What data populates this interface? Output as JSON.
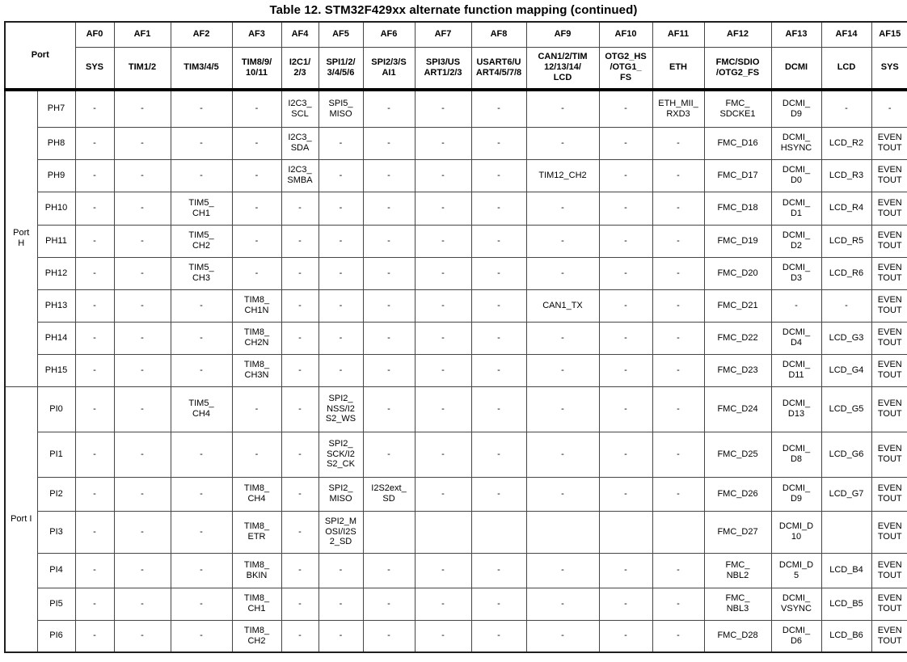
{
  "title": "Table 12. STM32F429xx alternate function mapping (continued)",
  "colors": {
    "background": "#ffffff",
    "text": "#000000",
    "grid_line": "#454545",
    "header_separator": "#000000"
  },
  "table": {
    "port_header": "Port",
    "af_headers": [
      "AF0",
      "AF1",
      "AF2",
      "AF3",
      "AF4",
      "AF5",
      "AF6",
      "AF7",
      "AF8",
      "AF9",
      "AF10",
      "AF11",
      "AF12",
      "AF13",
      "AF14",
      "AF15"
    ],
    "af_subheaders": [
      "SYS",
      "TIM1/2",
      "TIM3/4/5",
      "TIM8/9/\n10/11",
      "I2C1/\n2/3",
      "SPI1/2/\n3/4/5/6",
      "SPI2/3/S\nAI1",
      "SPI3/US\nART1/2/3",
      "USART6/U\nART4/5/7/8",
      "CAN1/2/TIM\n12/13/14/\nLCD",
      "OTG2_HS\n/OTG1_\nFS",
      "ETH",
      "FMC/SDIO\n/OTG2_FS",
      "DCMI",
      "LCD",
      "SYS"
    ],
    "groups": [
      {
        "port_label": "Port\nH",
        "rows": [
          {
            "pin": "PH7",
            "cells": [
              "-",
              "-",
              "-",
              "-",
              "I2C3_\nSCL",
              "SPI5_\nMISO",
              "-",
              "-",
              "-",
              "-",
              "-",
              "ETH_MII_\nRXD3",
              "FMC_\nSDCKE1",
              "DCMI_\nD9",
              "-",
              "-"
            ]
          },
          {
            "pin": "PH8",
            "cells": [
              "-",
              "-",
              "-",
              "-",
              "I2C3_\nSDA",
              "-",
              "-",
              "-",
              "-",
              "-",
              "-",
              "-",
              "FMC_D16",
              "DCMI_\nHSYNC",
              "LCD_R2",
              "EVEN\nTOUT"
            ]
          },
          {
            "pin": "PH9",
            "cells": [
              "-",
              "-",
              "-",
              "-",
              "I2C3_\nSMBA",
              "-",
              "-",
              "-",
              "-",
              "TIM12_CH2",
              "-",
              "-",
              "FMC_D17",
              "DCMI_\nD0",
              "LCD_R3",
              "EVEN\nTOUT"
            ]
          },
          {
            "pin": "PH10",
            "cells": [
              "-",
              "-",
              "TIM5_\nCH1",
              "-",
              "-",
              "-",
              "-",
              "-",
              "-",
              "-",
              "-",
              "-",
              "FMC_D18",
              "DCMI_\nD1",
              "LCD_R4",
              "EVEN\nTOUT"
            ]
          },
          {
            "pin": "PH11",
            "cells": [
              "-",
              "-",
              "TIM5_\nCH2",
              "-",
              "-",
              "-",
              "-",
              "-",
              "-",
              "-",
              "-",
              "-",
              "FMC_D19",
              "DCMI_\nD2",
              "LCD_R5",
              "EVEN\nTOUT"
            ]
          },
          {
            "pin": "PH12",
            "cells": [
              "-",
              "-",
              "TIM5_\nCH3",
              "-",
              "-",
              "-",
              "-",
              "-",
              "-",
              "-",
              "-",
              "-",
              "FMC_D20",
              "DCMI_\nD3",
              "LCD_R6",
              "EVEN\nTOUT"
            ]
          },
          {
            "pin": "PH13",
            "cells": [
              "-",
              "-",
              "-",
              "TIM8_\nCH1N",
              "-",
              "-",
              "-",
              "-",
              "-",
              "CAN1_TX",
              "-",
              "-",
              "FMC_D21",
              "-",
              "-",
              "EVEN\nTOUT"
            ]
          },
          {
            "pin": "PH14",
            "cells": [
              "-",
              "-",
              "-",
              "TIM8_\nCH2N",
              "-",
              "-",
              "-",
              "-",
              "-",
              "-",
              "-",
              "-",
              "FMC_D22",
              "DCMI_\nD4",
              "LCD_G3",
              "EVEN\nTOUT"
            ]
          },
          {
            "pin": "PH15",
            "cells": [
              "-",
              "-",
              "-",
              "TIM8_\nCH3N",
              "-",
              "-",
              "-",
              "-",
              "-",
              "-",
              "-",
              "-",
              "FMC_D23",
              "DCMI_\nD11",
              "LCD_G4",
              "EVEN\nTOUT"
            ]
          }
        ]
      },
      {
        "port_label": "Port I",
        "rows": [
          {
            "pin": "PI0",
            "cells": [
              "-",
              "-",
              "TIM5_\nCH4",
              "-",
              "-",
              "SPI2_\nNSS/I2\nS2_WS",
              "-",
              "-",
              "-",
              "-",
              "-",
              "-",
              "FMC_D24",
              "DCMI_\nD13",
              "LCD_G5",
              "EVEN\nTOUT"
            ]
          },
          {
            "pin": "PI1",
            "cells": [
              "-",
              "-",
              "-",
              "-",
              "-",
              "SPI2_\nSCK/I2\nS2_CK",
              "-",
              "-",
              "-",
              "-",
              "-",
              "-",
              "FMC_D25",
              "DCMI_\nD8",
              "LCD_G6",
              "EVEN\nTOUT"
            ]
          },
          {
            "pin": "PI2",
            "cells": [
              "-",
              "-",
              "-",
              "TIM8_\nCH4",
              "-",
              "SPI2_\nMISO",
              "I2S2ext_\nSD",
              "-",
              "-",
              "-",
              "-",
              "-",
              "FMC_D26",
              "DCMI_\nD9",
              "LCD_G7",
              "EVEN\nTOUT"
            ]
          },
          {
            "pin": "PI3",
            "cells": [
              "-",
              "-",
              "-",
              "TIM8_\nETR",
              "-",
              "SPI2_M\nOSI/I2S\n2_SD",
              "",
              "",
              "",
              "",
              "",
              "",
              "FMC_D27",
              "DCMI_D\n10",
              "",
              "EVEN\nTOUT"
            ]
          },
          {
            "pin": "PI4",
            "cells": [
              "-",
              "-",
              "-",
              "TIM8_\nBKIN",
              "-",
              "-",
              "-",
              "-",
              "-",
              "-",
              "-",
              "-",
              "FMC_\nNBL2",
              "DCMI_D\n5",
              "LCD_B4",
              "EVEN\nTOUT"
            ]
          },
          {
            "pin": "PI5",
            "cells": [
              "-",
              "-",
              "-",
              "TIM8_\nCH1",
              "-",
              "-",
              "-",
              "-",
              "-",
              "-",
              "-",
              "-",
              "FMC_\nNBL3",
              "DCMI_\nVSYNC",
              "LCD_B5",
              "EVEN\nTOUT"
            ]
          },
          {
            "pin": "PI6",
            "cells": [
              "-",
              "-",
              "-",
              "TIM8_\nCH2",
              "-",
              "-",
              "-",
              "-",
              "-",
              "-",
              "-",
              "-",
              "FMC_D28",
              "DCMI_\nD6",
              "LCD_B6",
              "EVEN\nTOUT"
            ]
          }
        ]
      }
    ]
  }
}
